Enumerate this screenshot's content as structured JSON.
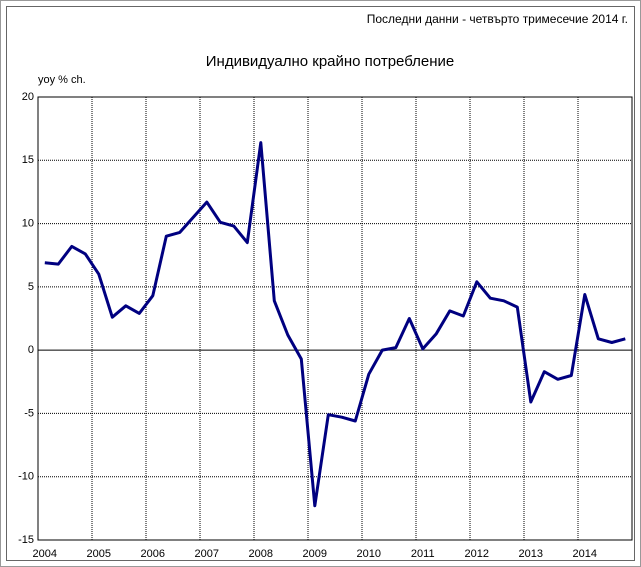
{
  "chart_data": {
    "type": "line",
    "note": "Последни данни - четвърто тримесечие 2014 г.",
    "title": "Индивидуално крайно потребление",
    "ylabel": "yoy % ch.",
    "categories": [
      "2004",
      null,
      null,
      null,
      "2005",
      null,
      null,
      null,
      "2006",
      null,
      null,
      null,
      "2007",
      null,
      null,
      null,
      "2008",
      null,
      null,
      null,
      "2009",
      null,
      null,
      null,
      "2010",
      null,
      null,
      null,
      "2011",
      null,
      null,
      null,
      "2012",
      null,
      null,
      null,
      "2013",
      null,
      null,
      null,
      "2014",
      null,
      null,
      null
    ],
    "series": [
      {
        "name": "Индивидуално крайно потребление",
        "color": "#000080",
        "values": [
          6.9,
          6.8,
          8.2,
          7.6,
          6.0,
          2.6,
          3.5,
          2.9,
          4.3,
          9.0,
          9.3,
          10.5,
          11.7,
          10.1,
          9.8,
          8.5,
          16.4,
          3.9,
          1.2,
          -0.7,
          -12.3,
          -5.1,
          -5.3,
          -5.6,
          -1.9,
          0.0,
          0.2,
          2.5,
          0.1,
          1.3,
          3.1,
          2.7,
          5.4,
          4.1,
          3.9,
          3.4,
          -4.1,
          -1.7,
          -2.3,
          -2.0,
          4.4,
          0.9,
          0.6,
          0.9
        ]
      }
    ],
    "ylim": [
      -15,
      20
    ],
    "yticks": [
      20,
      15,
      10,
      5,
      0,
      -5,
      -10,
      -15
    ],
    "grid": true
  }
}
